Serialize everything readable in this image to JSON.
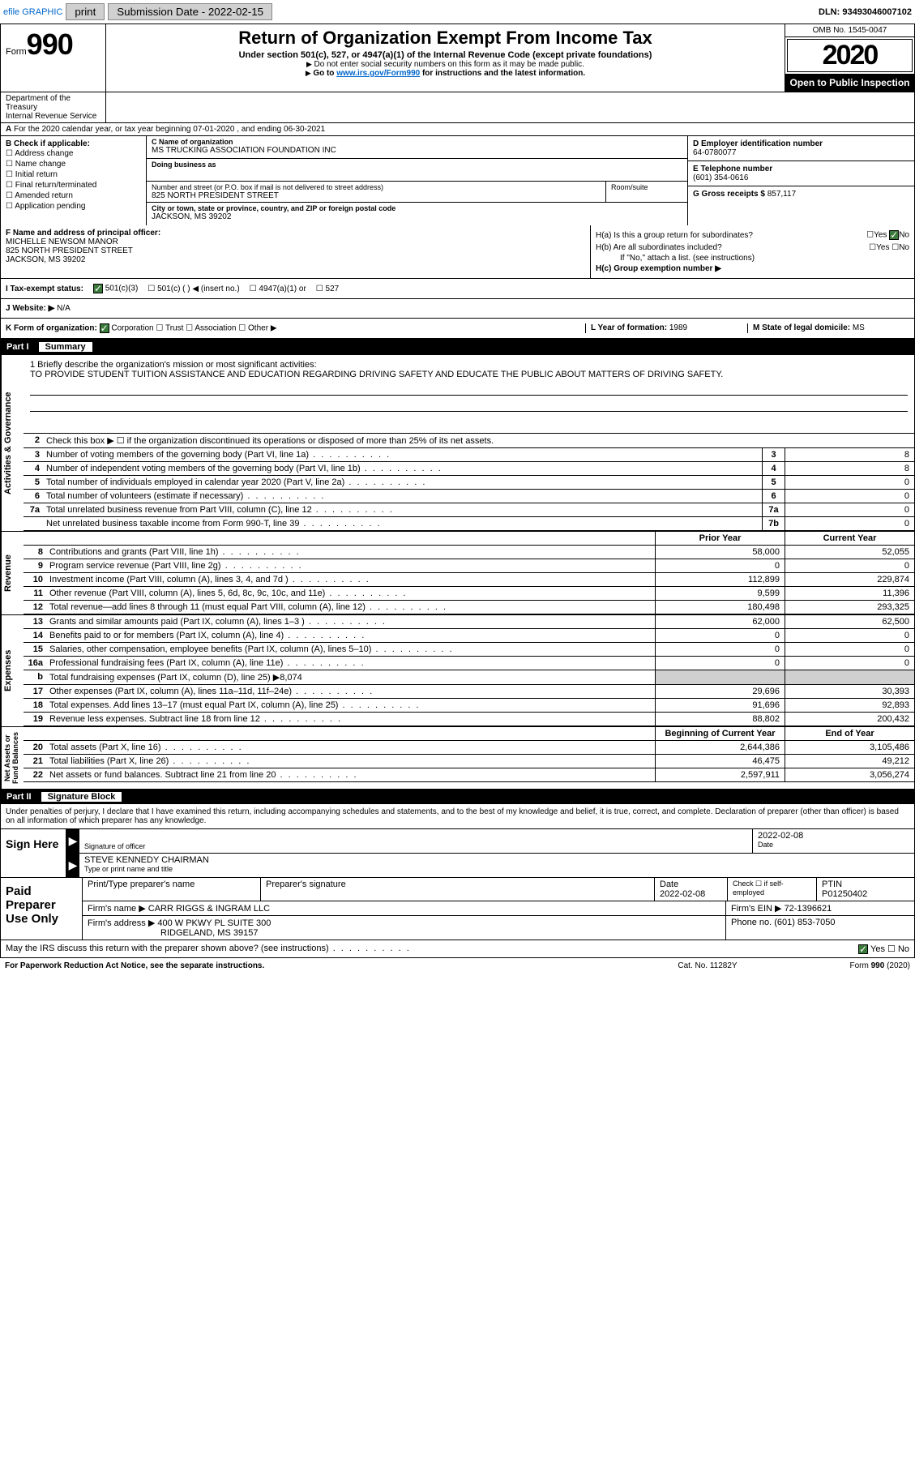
{
  "topbar": {
    "efile": "efile GRAPHIC",
    "print": "print",
    "submission_label": "Submission Date - ",
    "submission_date": "2022-02-15",
    "dln_label": "DLN: ",
    "dln": "93493046007102"
  },
  "header": {
    "form_word": "Form",
    "form_number": "990",
    "title": "Return of Organization Exempt From Income Tax",
    "subtitle": "Under section 501(c), 527, or 4947(a)(1) of the Internal Revenue Code (except private foundations)",
    "note1": "Do not enter social security numbers on this form as it may be made public.",
    "note2_pre": "Go to ",
    "note2_link": "www.irs.gov/Form990",
    "note2_post": " for instructions and the latest information.",
    "omb": "OMB No. 1545-0047",
    "year": "2020",
    "public": "Open to Public Inspection",
    "dept": "Department of the Treasury\nInternal Revenue Service"
  },
  "section_a": {
    "cal_line": "For the 2020 calendar year, or tax year beginning 07-01-2020    , and ending 06-30-2021",
    "b_label": "B Check if applicable:",
    "b_opts": [
      "Address change",
      "Name change",
      "Initial return",
      "Final return/terminated",
      "Amended return",
      "Application pending"
    ],
    "c_name_label": "C Name of organization",
    "c_name": "MS TRUCKING ASSOCIATION FOUNDATION INC",
    "dba_label": "Doing business as",
    "dba": "",
    "addr_label": "Number and street (or P.O. box if mail is not delivered to street address)",
    "room_label": "Room/suite",
    "addr": "825 NORTH PRESIDENT STREET",
    "city_label": "City or town, state or province, country, and ZIP or foreign postal code",
    "city": "JACKSON, MS  39202",
    "d_label": "D Employer identification number",
    "d_ein": "64-0780077",
    "e_label": "E Telephone number",
    "e_phone": "(601) 354-0616",
    "g_label": "G Gross receipts $ ",
    "g_val": "857,117",
    "f_label": "F  Name and address of principal officer:",
    "f_name": "MICHELLE NEWSOM MANOR",
    "f_addr1": "825 NORTH PRESIDENT STREET",
    "f_addr2": "JACKSON, MS  39202",
    "ha_label": "H(a)  Is this a group return for subordinates?",
    "hb_label": "H(b)  Are all subordinates included?",
    "h_note": "If \"No,\" attach a list. (see instructions)",
    "hc_label": "H(c)  Group exemption number ▶",
    "yes": "Yes",
    "no": "No",
    "i_label": "I  Tax-exempt status:",
    "i_501c3": "501(c)(3)",
    "i_501c": "501(c) (   ) ◀ (insert no.)",
    "i_4947": "4947(a)(1) or",
    "i_527": "527",
    "j_label": "J  Website: ▶",
    "j_val": "N/A",
    "k_label": "K Form of organization:",
    "k_corp": "Corporation",
    "k_trust": "Trust",
    "k_assoc": "Association",
    "k_other": "Other ▶",
    "l_label": "L Year of formation: ",
    "l_val": "1989",
    "m_label": "M State of legal domicile: ",
    "m_val": "MS"
  },
  "part1": {
    "hdr_num": "Part I",
    "hdr_title": "Summary",
    "mission_label": "1   Briefly describe the organization's mission or most significant activities:",
    "mission": "TO PROVIDE STUDENT TUITION ASSISTANCE AND EDUCATION REGARDING DRIVING SAFETY AND EDUCATE THE PUBLIC ABOUT MATTERS OF DRIVING SAFETY.",
    "line2": "Check this box ▶ ☐  if the organization discontinued its operations or disposed of more than 25% of its net assets.",
    "gov_lines": [
      {
        "n": "3",
        "d": "Number of voting members of the governing body (Part VI, line 1a)",
        "box": "3",
        "v": "8"
      },
      {
        "n": "4",
        "d": "Number of independent voting members of the governing body (Part VI, line 1b)",
        "box": "4",
        "v": "8"
      },
      {
        "n": "5",
        "d": "Total number of individuals employed in calendar year 2020 (Part V, line 2a)",
        "box": "5",
        "v": "0"
      },
      {
        "n": "6",
        "d": "Total number of volunteers (estimate if necessary)",
        "box": "6",
        "v": "0"
      },
      {
        "n": "7a",
        "d": "Total unrelated business revenue from Part VIII, column (C), line 12",
        "box": "7a",
        "v": "0"
      },
      {
        "n": "",
        "d": "Net unrelated business taxable income from Form 990-T, line 39",
        "box": "7b",
        "v": "0"
      }
    ],
    "col_prior": "Prior Year",
    "col_curr": "Current Year",
    "rev_label": "Revenue",
    "rev_lines": [
      {
        "n": "8",
        "d": "Contributions and grants (Part VIII, line 1h)",
        "p": "58,000",
        "c": "52,055"
      },
      {
        "n": "9",
        "d": "Program service revenue (Part VIII, line 2g)",
        "p": "0",
        "c": "0"
      },
      {
        "n": "10",
        "d": "Investment income (Part VIII, column (A), lines 3, 4, and 7d )",
        "p": "112,899",
        "c": "229,874"
      },
      {
        "n": "11",
        "d": "Other revenue (Part VIII, column (A), lines 5, 6d, 8c, 9c, 10c, and 11e)",
        "p": "9,599",
        "c": "11,396"
      },
      {
        "n": "12",
        "d": "Total revenue—add lines 8 through 11 (must equal Part VIII, column (A), line 12)",
        "p": "180,498",
        "c": "293,325"
      }
    ],
    "exp_label": "Expenses",
    "exp_lines": [
      {
        "n": "13",
        "d": "Grants and similar amounts paid (Part IX, column (A), lines 1–3 )",
        "p": "62,000",
        "c": "62,500"
      },
      {
        "n": "14",
        "d": "Benefits paid to or for members (Part IX, column (A), line 4)",
        "p": "0",
        "c": "0"
      },
      {
        "n": "15",
        "d": "Salaries, other compensation, employee benefits (Part IX, column (A), lines 5–10)",
        "p": "0",
        "c": "0"
      },
      {
        "n": "16a",
        "d": "Professional fundraising fees (Part IX, column (A), line 11e)",
        "p": "0",
        "c": "0"
      },
      {
        "n": "b",
        "d": "Total fundraising expenses (Part IX, column (D), line 25) ▶8,074",
        "p": "",
        "c": "",
        "shade": true
      },
      {
        "n": "17",
        "d": "Other expenses (Part IX, column (A), lines 11a–11d, 11f–24e)",
        "p": "29,696",
        "c": "30,393"
      },
      {
        "n": "18",
        "d": "Total expenses. Add lines 13–17 (must equal Part IX, column (A), line 25)",
        "p": "91,696",
        "c": "92,893"
      },
      {
        "n": "19",
        "d": "Revenue less expenses. Subtract line 18 from line 12",
        "p": "88,802",
        "c": "200,432"
      }
    ],
    "na_label": "Net Assets or\nFund Balances",
    "na_col1": "Beginning of Current Year",
    "na_col2": "End of Year",
    "na_lines": [
      {
        "n": "20",
        "d": "Total assets (Part X, line 16)",
        "p": "2,644,386",
        "c": "3,105,486"
      },
      {
        "n": "21",
        "d": "Total liabilities (Part X, line 26)",
        "p": "46,475",
        "c": "49,212"
      },
      {
        "n": "22",
        "d": "Net assets or fund balances. Subtract line 21 from line 20",
        "p": "2,597,911",
        "c": "3,056,274"
      }
    ]
  },
  "part2": {
    "hdr_num": "Part II",
    "hdr_title": "Signature Block",
    "decl": "Under penalties of perjury, I declare that I have examined this return, including accompanying schedules and statements, and to the best of my knowledge and belief, it is true, correct, and complete. Declaration of preparer (other than officer) is based on all information of which preparer has any knowledge.",
    "sign_here": "Sign Here",
    "sig_officer": "Signature of officer",
    "sig_date": "2022-02-08",
    "date_lab": "Date",
    "officer_name": "STEVE KENNEDY CHAIRMAN",
    "name_lab": "Type or print name and title",
    "paid_prep": "Paid Preparer Use Only",
    "prep_name_lab": "Print/Type preparer's name",
    "prep_sig_lab": "Preparer's signature",
    "prep_date_lab": "Date",
    "prep_date": "2022-02-08",
    "prep_self": "Check ☐ if self-employed",
    "ptin_lab": "PTIN",
    "ptin": "P01250402",
    "firm_name_lab": "Firm's name    ▶",
    "firm_name": "CARR RIGGS & INGRAM LLC",
    "firm_ein_lab": "Firm's EIN ▶",
    "firm_ein": "72-1396621",
    "firm_addr_lab": "Firm's address ▶",
    "firm_addr": "400 W PKWY PL SUITE 300",
    "firm_city": "RIDGELAND, MS  39157",
    "phone_lab": "Phone no. ",
    "phone": "(601) 853-7050",
    "discuss": "May the IRS discuss this return with the preparer shown above? (see instructions)"
  },
  "footer": {
    "pra": "For Paperwork Reduction Act Notice, see the separate instructions.",
    "cat": "Cat. No. 11282Y",
    "form": "Form 990 (2020)"
  },
  "colors": {
    "link": "#0066cc",
    "check_green": "#3a7a3a",
    "shade": "#d0d0d0"
  }
}
